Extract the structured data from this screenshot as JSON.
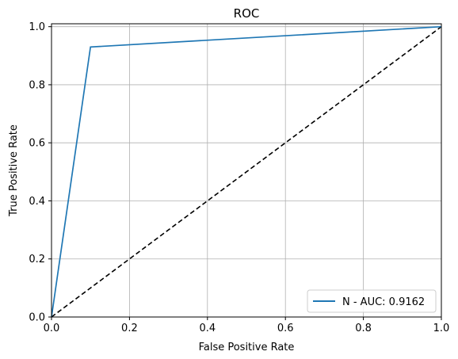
{
  "chart_data": {
    "type": "line",
    "title": "ROC",
    "xlabel": "False Positive Rate",
    "ylabel": "True Positive Rate",
    "xlim": [
      0,
      1
    ],
    "ylim": [
      0,
      1.01
    ],
    "grid": true,
    "legend_position": "bottom-right",
    "x_ticks": [
      0.0,
      0.2,
      0.4,
      0.6,
      0.8,
      1.0
    ],
    "y_ticks": [
      0.0,
      0.2,
      0.4,
      0.6,
      0.8,
      1.0
    ],
    "x_tick_labels": [
      "0.0",
      "0.2",
      "0.4",
      "0.6",
      "0.8",
      "1.0"
    ],
    "y_tick_labels": [
      "0.0",
      "0.2",
      "0.4",
      "0.6",
      "0.8",
      "1.0"
    ],
    "series": [
      {
        "name": "N - AUC: 0.9162",
        "color": "#1f77b4",
        "style": "solid",
        "x": [
          0.0,
          0.1,
          1.0
        ],
        "y": [
          0.0,
          0.93,
          1.0
        ]
      }
    ],
    "reference_line": {
      "color": "#000000",
      "style": "dashed",
      "x": [
        0.0,
        1.0
      ],
      "y": [
        0.0,
        1.0
      ]
    }
  }
}
